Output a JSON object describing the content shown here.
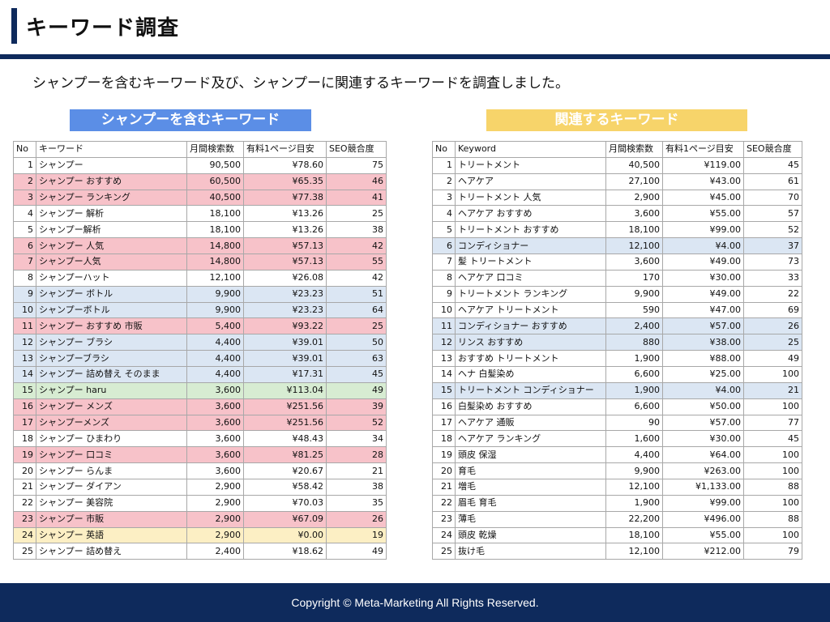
{
  "title": "キーワード調査",
  "intro": "シャンプーを含むキーワード及び、シャンプーに関連するキーワードを調査しました。",
  "colors": {
    "navy": "#0e2a5c",
    "blue_header": "#5b8ee6",
    "yellow_header": "#f7d46a",
    "pink": "#f7c2c9",
    "blue": "#dbe6f3",
    "green": "#d7ecd2",
    "yellow": "#fcefc4"
  },
  "left": {
    "header": "シャンプーを含むキーワード",
    "columns": [
      "No",
      "キーワード",
      "月間検索数",
      "有料1ページ目安",
      "SEO競合度"
    ],
    "rows": [
      {
        "no": "1",
        "kw": "シャンプー",
        "vol": "90,500",
        "cpc": "¥78.60",
        "seo": "75",
        "hl": "none"
      },
      {
        "no": "2",
        "kw": "シャンプー おすすめ",
        "vol": "60,500",
        "cpc": "¥65.35",
        "seo": "46",
        "hl": "pink"
      },
      {
        "no": "3",
        "kw": "シャンプー ランキング",
        "vol": "40,500",
        "cpc": "¥77.38",
        "seo": "41",
        "hl": "pink"
      },
      {
        "no": "4",
        "kw": "シャンプー 解析",
        "vol": "18,100",
        "cpc": "¥13.26",
        "seo": "25",
        "hl": "none"
      },
      {
        "no": "5",
        "kw": "シャンプー解析",
        "vol": "18,100",
        "cpc": "¥13.26",
        "seo": "38",
        "hl": "none"
      },
      {
        "no": "6",
        "kw": "シャンプー 人気",
        "vol": "14,800",
        "cpc": "¥57.13",
        "seo": "42",
        "hl": "pink"
      },
      {
        "no": "7",
        "kw": "シャンプー人気",
        "vol": "14,800",
        "cpc": "¥57.13",
        "seo": "55",
        "hl": "pink"
      },
      {
        "no": "8",
        "kw": "シャンプーハット",
        "vol": "12,100",
        "cpc": "¥26.08",
        "seo": "42",
        "hl": "none"
      },
      {
        "no": "9",
        "kw": "シャンプー ボトル",
        "vol": "9,900",
        "cpc": "¥23.23",
        "seo": "51",
        "hl": "blue"
      },
      {
        "no": "10",
        "kw": "シャンプーボトル",
        "vol": "9,900",
        "cpc": "¥23.23",
        "seo": "64",
        "hl": "blue"
      },
      {
        "no": "11",
        "kw": "シャンプー おすすめ 市販",
        "vol": "5,400",
        "cpc": "¥93.22",
        "seo": "25",
        "hl": "pink"
      },
      {
        "no": "12",
        "kw": "シャンプー ブラシ",
        "vol": "4,400",
        "cpc": "¥39.01",
        "seo": "50",
        "hl": "blue"
      },
      {
        "no": "13",
        "kw": "シャンプーブラシ",
        "vol": "4,400",
        "cpc": "¥39.01",
        "seo": "63",
        "hl": "blue"
      },
      {
        "no": "14",
        "kw": "シャンプー 詰め替え そのまま",
        "vol": "4,400",
        "cpc": "¥17.31",
        "seo": "45",
        "hl": "blue"
      },
      {
        "no": "15",
        "kw": "シャンプー haru",
        "vol": "3,600",
        "cpc": "¥113.04",
        "seo": "49",
        "hl": "green"
      },
      {
        "no": "16",
        "kw": "シャンプー メンズ",
        "vol": "3,600",
        "cpc": "¥251.56",
        "seo": "39",
        "hl": "pink"
      },
      {
        "no": "17",
        "kw": "シャンプーメンズ",
        "vol": "3,600",
        "cpc": "¥251.56",
        "seo": "52",
        "hl": "pink"
      },
      {
        "no": "18",
        "kw": "シャンプー ひまわり",
        "vol": "3,600",
        "cpc": "¥48.43",
        "seo": "34",
        "hl": "none"
      },
      {
        "no": "19",
        "kw": "シャンプー 口コミ",
        "vol": "3,600",
        "cpc": "¥81.25",
        "seo": "28",
        "hl": "pink"
      },
      {
        "no": "20",
        "kw": "シャンプー らんま",
        "vol": "3,600",
        "cpc": "¥20.67",
        "seo": "21",
        "hl": "none"
      },
      {
        "no": "21",
        "kw": "シャンプー ダイアン",
        "vol": "2,900",
        "cpc": "¥58.42",
        "seo": "38",
        "hl": "none"
      },
      {
        "no": "22",
        "kw": "シャンプー 美容院",
        "vol": "2,900",
        "cpc": "¥70.03",
        "seo": "35",
        "hl": "none"
      },
      {
        "no": "23",
        "kw": "シャンプー 市販",
        "vol": "2,900",
        "cpc": "¥67.09",
        "seo": "26",
        "hl": "pink"
      },
      {
        "no": "24",
        "kw": "シャンプー 英語",
        "vol": "2,900",
        "cpc": "¥0.00",
        "seo": "19",
        "hl": "yellow"
      },
      {
        "no": "25",
        "kw": "シャンプー 詰め替え",
        "vol": "2,400",
        "cpc": "¥18.62",
        "seo": "49",
        "hl": "none"
      }
    ]
  },
  "right": {
    "header": "関連するキーワード",
    "columns": [
      "No",
      "Keyword",
      "月間検索数",
      "有料1ページ目安",
      "SEO競合度"
    ],
    "rows": [
      {
        "no": "1",
        "kw": "トリートメント",
        "vol": "40,500",
        "cpc": "¥119.00",
        "seo": "45",
        "hl": "none"
      },
      {
        "no": "2",
        "kw": "ヘアケア",
        "vol": "27,100",
        "cpc": "¥43.00",
        "seo": "61",
        "hl": "none"
      },
      {
        "no": "3",
        "kw": "トリートメント 人気",
        "vol": "2,900",
        "cpc": "¥45.00",
        "seo": "70",
        "hl": "none"
      },
      {
        "no": "4",
        "kw": "ヘアケア おすすめ",
        "vol": "3,600",
        "cpc": "¥55.00",
        "seo": "57",
        "hl": "none"
      },
      {
        "no": "5",
        "kw": "トリートメント おすすめ",
        "vol": "18,100",
        "cpc": "¥99.00",
        "seo": "52",
        "hl": "none"
      },
      {
        "no": "6",
        "kw": "コンディショナー",
        "vol": "12,100",
        "cpc": "¥4.00",
        "seo": "37",
        "hl": "blue"
      },
      {
        "no": "7",
        "kw": "髪 トリートメント",
        "vol": "3,600",
        "cpc": "¥49.00",
        "seo": "73",
        "hl": "none"
      },
      {
        "no": "8",
        "kw": "ヘアケア 口コミ",
        "vol": "170",
        "cpc": "¥30.00",
        "seo": "33",
        "hl": "none"
      },
      {
        "no": "9",
        "kw": "トリートメント ランキング",
        "vol": "9,900",
        "cpc": "¥49.00",
        "seo": "22",
        "hl": "none"
      },
      {
        "no": "10",
        "kw": "ヘアケア トリートメント",
        "vol": "590",
        "cpc": "¥47.00",
        "seo": "69",
        "hl": "none"
      },
      {
        "no": "11",
        "kw": "コンディショナー おすすめ",
        "vol": "2,400",
        "cpc": "¥57.00",
        "seo": "26",
        "hl": "blue"
      },
      {
        "no": "12",
        "kw": "リンス おすすめ",
        "vol": "880",
        "cpc": "¥38.00",
        "seo": "25",
        "hl": "blue"
      },
      {
        "no": "13",
        "kw": "おすすめ トリートメント",
        "vol": "1,900",
        "cpc": "¥88.00",
        "seo": "49",
        "hl": "none"
      },
      {
        "no": "14",
        "kw": "ヘナ 白髪染め",
        "vol": "6,600",
        "cpc": "¥25.00",
        "seo": "100",
        "hl": "none"
      },
      {
        "no": "15",
        "kw": "トリートメント コンディショナー",
        "vol": "1,900",
        "cpc": "¥4.00",
        "seo": "21",
        "hl": "blue"
      },
      {
        "no": "16",
        "kw": "白髪染め おすすめ",
        "vol": "6,600",
        "cpc": "¥50.00",
        "seo": "100",
        "hl": "none"
      },
      {
        "no": "17",
        "kw": "ヘアケア 通販",
        "vol": "90",
        "cpc": "¥57.00",
        "seo": "77",
        "hl": "none"
      },
      {
        "no": "18",
        "kw": "ヘアケア ランキング",
        "vol": "1,600",
        "cpc": "¥30.00",
        "seo": "45",
        "hl": "none"
      },
      {
        "no": "19",
        "kw": "頭皮 保湿",
        "vol": "4,400",
        "cpc": "¥64.00",
        "seo": "100",
        "hl": "none"
      },
      {
        "no": "20",
        "kw": "育毛",
        "vol": "9,900",
        "cpc": "¥263.00",
        "seo": "100",
        "hl": "none"
      },
      {
        "no": "21",
        "kw": "増毛",
        "vol": "12,100",
        "cpc": "¥1,133.00",
        "seo": "88",
        "hl": "none"
      },
      {
        "no": "22",
        "kw": "眉毛 育毛",
        "vol": "1,900",
        "cpc": "¥99.00",
        "seo": "100",
        "hl": "none"
      },
      {
        "no": "23",
        "kw": "薄毛",
        "vol": "22,200",
        "cpc": "¥496.00",
        "seo": "88",
        "hl": "none"
      },
      {
        "no": "24",
        "kw": "頭皮 乾燥",
        "vol": "18,100",
        "cpc": "¥55.00",
        "seo": "100",
        "hl": "none"
      },
      {
        "no": "25",
        "kw": "抜け毛",
        "vol": "12,100",
        "cpc": "¥212.00",
        "seo": "79",
        "hl": "none"
      }
    ]
  },
  "footer": "Copyright © Meta-Marketing All Rights Reserved."
}
